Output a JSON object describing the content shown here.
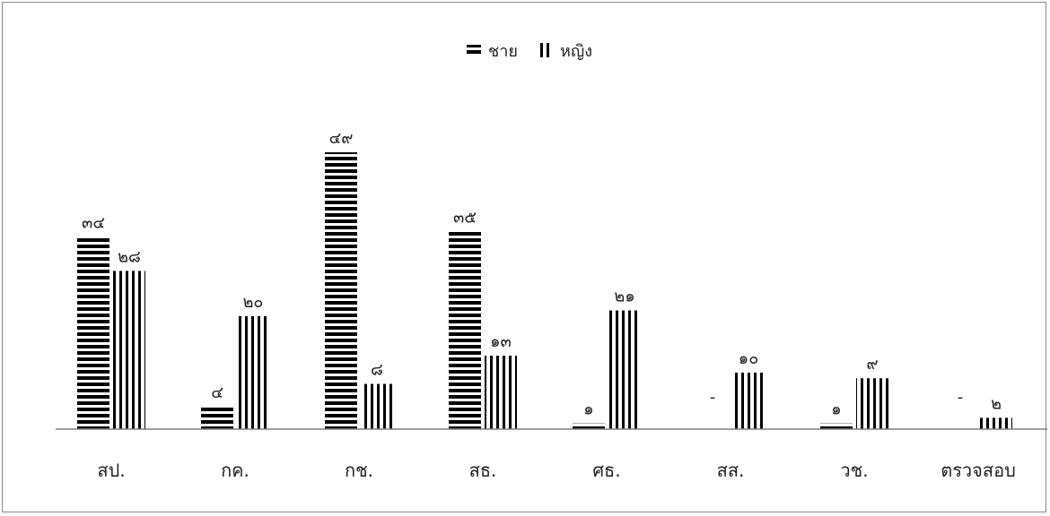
{
  "chart_data": {
    "type": "bar",
    "categories": [
      "สป.",
      "กค.",
      "กช.",
      "สธ.",
      "ศธ.",
      "สส.",
      "วช.",
      "ตรวจสอบ"
    ],
    "series": [
      {
        "name": "ชาย",
        "values": [
          34,
          4,
          49,
          35,
          1,
          0,
          1,
          0
        ],
        "labels": [
          "๓๔",
          "๔",
          "๔๙",
          "๓๕",
          "๑",
          "-",
          "๑",
          "-"
        ],
        "pattern": "horizontal-stripes"
      },
      {
        "name": "หญิง",
        "values": [
          28,
          20,
          8,
          13,
          21,
          10,
          9,
          2
        ],
        "labels": [
          "๒๘",
          "๒๐",
          "๘",
          "๑๓",
          "๒๑",
          "๑๐",
          "๙",
          "๒"
        ],
        "pattern": "vertical-stripes"
      }
    ],
    "legend": "top-center",
    "ylim": [
      0,
      49
    ],
    "grid": false,
    "colors": {
      "bar": "#000000",
      "axis": "#808080",
      "frame": "#8c8c8c"
    }
  }
}
